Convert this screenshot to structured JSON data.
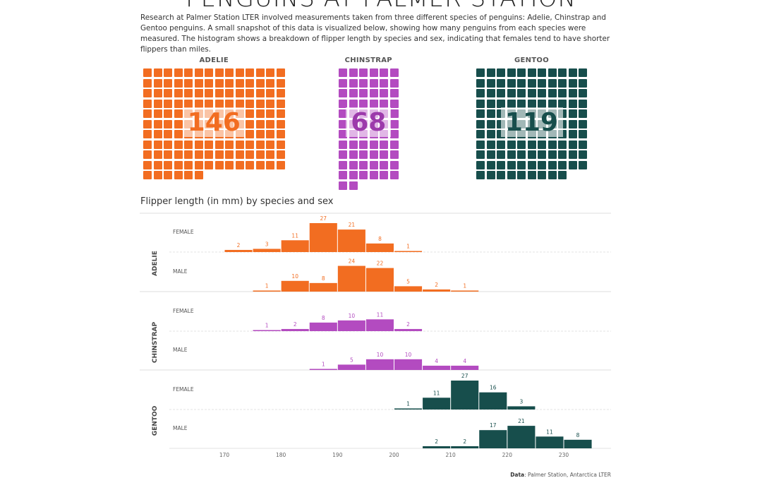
{
  "title": "PENGUINS AT PALMER STATION",
  "intro": "Research at Palmer Station LTER involved measurements taken from three different species of penguins: Adelie, Chinstrap and Gentoo penguins. A small snapshot of this data is visualized below, showing how many penguins from each species were measured. The histogram shows a breakdown of flipper length by species and sex, indicating that females tend to have shorter flippers than miles.",
  "colors": {
    "adelie": "#f26d21",
    "chinstrap": "#b34bc0",
    "gentoo": "#174e4c"
  },
  "waffles": [
    {
      "species": "ADELIE",
      "count": 146,
      "color": "#f26d21",
      "count_color": "#f26d21"
    },
    {
      "species": "CHINSTRAP",
      "count": 68,
      "color": "#b34bc0",
      "count_color": "#9c3aab"
    },
    {
      "species": "GENTOO",
      "count": 119,
      "color": "#174e4c",
      "count_color": "#174e4c"
    }
  ],
  "histogram_title": "Flipper length (in mm) by species and sex",
  "chart_data": {
    "type": "bar",
    "title": "Flipper length (in mm) by species and sex",
    "xlabel": "",
    "ylabel": "",
    "xlim": [
      165,
      237
    ],
    "x_ticks": [
      170,
      180,
      190,
      200,
      210,
      220,
      230
    ],
    "bin_width": 5,
    "panels": [
      {
        "species": "ADELIE",
        "sex": "FEMALE",
        "color": "#f26d21",
        "bins": [
          {
            "start": 170,
            "count": 2
          },
          {
            "start": 175,
            "count": 3
          },
          {
            "start": 180,
            "count": 11
          },
          {
            "start": 185,
            "count": 27
          },
          {
            "start": 190,
            "count": 21
          },
          {
            "start": 195,
            "count": 8
          },
          {
            "start": 200,
            "count": 1
          }
        ]
      },
      {
        "species": "ADELIE",
        "sex": "MALE",
        "color": "#f26d21",
        "bins": [
          {
            "start": 175,
            "count": 1
          },
          {
            "start": 180,
            "count": 10
          },
          {
            "start": 185,
            "count": 8
          },
          {
            "start": 190,
            "count": 24
          },
          {
            "start": 195,
            "count": 22
          },
          {
            "start": 200,
            "count": 5
          },
          {
            "start": 205,
            "count": 2
          },
          {
            "start": 210,
            "count": 1
          }
        ]
      },
      {
        "species": "CHINSTRAP",
        "sex": "FEMALE",
        "color": "#b34bc0",
        "bins": [
          {
            "start": 175,
            "count": 1
          },
          {
            "start": 180,
            "count": 2
          },
          {
            "start": 185,
            "count": 8
          },
          {
            "start": 190,
            "count": 10
          },
          {
            "start": 195,
            "count": 11
          },
          {
            "start": 200,
            "count": 2
          }
        ]
      },
      {
        "species": "CHINSTRAP",
        "sex": "MALE",
        "color": "#b34bc0",
        "bins": [
          {
            "start": 185,
            "count": 1
          },
          {
            "start": 190,
            "count": 5
          },
          {
            "start": 195,
            "count": 10
          },
          {
            "start": 200,
            "count": 10
          },
          {
            "start": 205,
            "count": 4
          },
          {
            "start": 210,
            "count": 4
          }
        ]
      },
      {
        "species": "GENTOO",
        "sex": "FEMALE",
        "color": "#174e4c",
        "bins": [
          {
            "start": 200,
            "count": 1
          },
          {
            "start": 205,
            "count": 11
          },
          {
            "start": 210,
            "count": 27
          },
          {
            "start": 215,
            "count": 16
          },
          {
            "start": 220,
            "count": 3
          }
        ]
      },
      {
        "species": "GENTOO",
        "sex": "MALE",
        "color": "#174e4c",
        "bins": [
          {
            "start": 205,
            "count": 2
          },
          {
            "start": 210,
            "count": 2
          },
          {
            "start": 215,
            "count": 17
          },
          {
            "start": 220,
            "count": 21
          },
          {
            "start": 225,
            "count": 11
          },
          {
            "start": 230,
            "count": 8
          }
        ]
      }
    ]
  },
  "credit": {
    "label": "Data",
    "text": ": Palmer Station, Antarctica LTER"
  }
}
